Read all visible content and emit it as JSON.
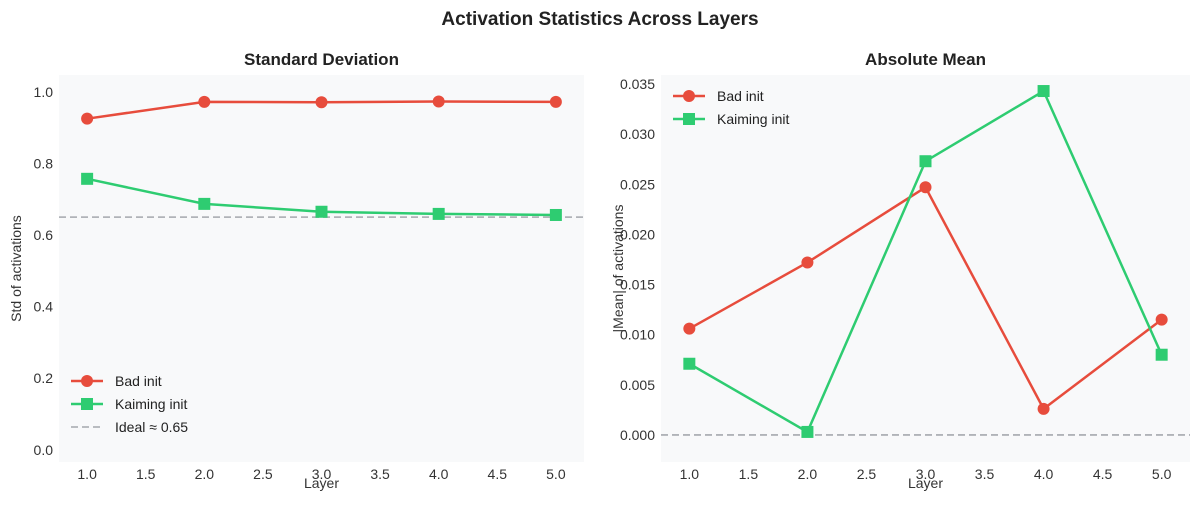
{
  "suptitle": "Activation Statistics Across Layers",
  "colors": {
    "bad": "#e74c3c",
    "kaiming": "#2ecc71",
    "ideal": "#b0b3b8",
    "axes_bg": "#f8f9fa"
  },
  "chart_data": [
    {
      "type": "line",
      "title": "Standard Deviation",
      "xlabel": "Layer",
      "ylabel": "Std of activations",
      "x": [
        1,
        2,
        3,
        4,
        5
      ],
      "xlim": [
        0.76,
        5.24
      ],
      "ylim": [
        -0.034,
        1.047
      ],
      "xticks": [
        "1.0",
        "1.5",
        "2.0",
        "2.5",
        "3.0",
        "3.5",
        "4.0",
        "4.5",
        "5.0"
      ],
      "yticks": [
        "0.0",
        "0.2",
        "0.4",
        "0.6",
        "0.8",
        "1.0"
      ],
      "grid": false,
      "legend": "lower-left",
      "series": [
        {
          "name": "Bad init",
          "marker": "circle",
          "color": "#e74c3c",
          "values": [
            0.925,
            0.972,
            0.971,
            0.973,
            0.972
          ]
        },
        {
          "name": "Kaiming init",
          "marker": "square",
          "color": "#2ecc71",
          "values": [
            0.757,
            0.687,
            0.665,
            0.659,
            0.656
          ]
        }
      ],
      "hline": {
        "name": "Ideal ≈ 0.65",
        "value": 0.65,
        "style": "dashed",
        "color": "#b0b3b8"
      }
    },
    {
      "type": "line",
      "title": "Absolute Mean",
      "xlabel": "Layer",
      "ylabel": "|Mean| of activations",
      "x": [
        1,
        2,
        3,
        4,
        5
      ],
      "xlim": [
        0.76,
        5.24
      ],
      "ylim": [
        -0.0027,
        0.0359
      ],
      "xticks": [
        "1.0",
        "1.5",
        "2.0",
        "2.5",
        "3.0",
        "3.5",
        "4.0",
        "4.5",
        "5.0"
      ],
      "yticks": [
        "0.000",
        "0.005",
        "0.010",
        "0.015",
        "0.020",
        "0.025",
        "0.030",
        "0.035"
      ],
      "grid": false,
      "legend": "upper-left",
      "series": [
        {
          "name": "Bad init",
          "marker": "circle",
          "color": "#e74c3c",
          "values": [
            0.0106,
            0.0172,
            0.0247,
            0.0026,
            0.0115
          ]
        },
        {
          "name": "Kaiming init",
          "marker": "square",
          "color": "#2ecc71",
          "values": [
            0.0071,
            0.0003,
            0.0273,
            0.0343,
            0.008
          ]
        }
      ],
      "hline": {
        "value": 0.0,
        "style": "dashed",
        "color": "#b0b3b8"
      }
    }
  ]
}
